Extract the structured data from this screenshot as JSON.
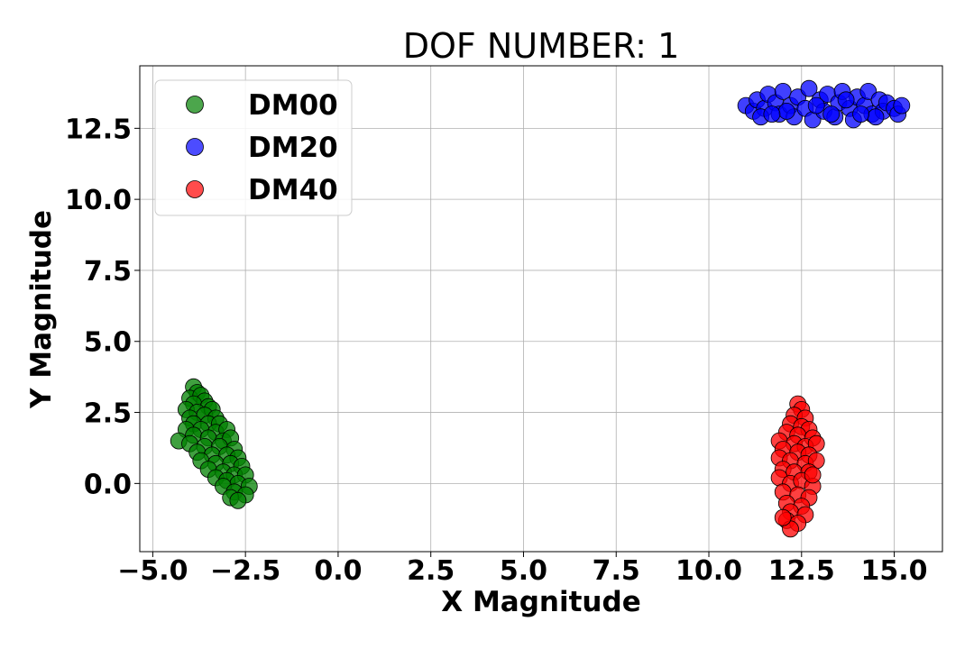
{
  "chart_data": {
    "type": "scatter",
    "title": "DOF NUMBER: 1",
    "xlabel": "X Magnitude",
    "ylabel": "Y Magnitude",
    "xlim": [
      -5.35,
      16.3
    ],
    "ylim": [
      -2.4,
      14.7
    ],
    "x_ticks": [
      -5.0,
      -2.5,
      0.0,
      2.5,
      5.0,
      7.5,
      10.0,
      12.5,
      15.0
    ],
    "x_tick_labels": [
      "−5.0",
      "−2.5",
      "0.0",
      "2.5",
      "5.0",
      "7.5",
      "10.0",
      "12.5",
      "15.0"
    ],
    "y_ticks": [
      0.0,
      2.5,
      5.0,
      7.5,
      10.0,
      12.5
    ],
    "y_tick_labels": [
      "0.0",
      "2.5",
      "5.0",
      "7.5",
      "10.0",
      "12.5"
    ],
    "grid": true,
    "legend_position": "top-left",
    "series": [
      {
        "name": "DM00",
        "color": "#008000",
        "legend_color": "#4ca64c",
        "points": [
          [
            -3.9,
            3.4
          ],
          [
            -3.8,
            3.2
          ],
          [
            -4.0,
            3.0
          ],
          [
            -3.7,
            3.1
          ],
          [
            -3.6,
            2.9
          ],
          [
            -3.9,
            2.8
          ],
          [
            -4.1,
            2.6
          ],
          [
            -3.5,
            2.7
          ],
          [
            -3.8,
            2.5
          ],
          [
            -3.4,
            2.6
          ],
          [
            -4.0,
            2.3
          ],
          [
            -3.6,
            2.4
          ],
          [
            -3.3,
            2.3
          ],
          [
            -3.9,
            2.1
          ],
          [
            -3.5,
            2.1
          ],
          [
            -3.2,
            2.1
          ],
          [
            -4.1,
            1.9
          ],
          [
            -3.7,
            1.9
          ],
          [
            -3.3,
            1.8
          ],
          [
            -3.0,
            1.9
          ],
          [
            -4.3,
            1.5
          ],
          [
            -3.9,
            1.7
          ],
          [
            -3.5,
            1.6
          ],
          [
            -3.1,
            1.5
          ],
          [
            -2.9,
            1.6
          ],
          [
            -4.0,
            1.4
          ],
          [
            -3.6,
            1.3
          ],
          [
            -3.2,
            1.3
          ],
          [
            -2.8,
            1.2
          ],
          [
            -3.8,
            1.1
          ],
          [
            -3.4,
            1.0
          ],
          [
            -3.0,
            1.0
          ],
          [
            -2.7,
            0.9
          ],
          [
            -3.7,
            0.8
          ],
          [
            -3.3,
            0.7
          ],
          [
            -2.9,
            0.7
          ],
          [
            -2.6,
            0.6
          ],
          [
            -3.5,
            0.5
          ],
          [
            -3.1,
            0.4
          ],
          [
            -2.8,
            0.3
          ],
          [
            -2.5,
            0.3
          ],
          [
            -3.3,
            0.2
          ],
          [
            -3.0,
            0.1
          ],
          [
            -2.7,
            0.0
          ],
          [
            -2.4,
            -0.1
          ],
          [
            -3.1,
            -0.1
          ],
          [
            -2.8,
            -0.3
          ],
          [
            -2.5,
            -0.4
          ],
          [
            -2.9,
            -0.5
          ],
          [
            -2.7,
            -0.6
          ]
        ]
      },
      {
        "name": "DM20",
        "color": "#0000ff",
        "legend_color": "#4c4cff",
        "points": [
          [
            11.0,
            13.3
          ],
          [
            11.2,
            13.1
          ],
          [
            11.3,
            13.5
          ],
          [
            11.5,
            13.2
          ],
          [
            11.6,
            13.7
          ],
          [
            11.8,
            13.4
          ],
          [
            11.9,
            13.0
          ],
          [
            12.0,
            13.8
          ],
          [
            12.2,
            13.3
          ],
          [
            12.3,
            12.9
          ],
          [
            12.4,
            13.6
          ],
          [
            12.6,
            13.2
          ],
          [
            12.7,
            13.9
          ],
          [
            12.8,
            12.8
          ],
          [
            13.0,
            13.5
          ],
          [
            13.1,
            13.1
          ],
          [
            13.2,
            13.7
          ],
          [
            13.4,
            12.9
          ],
          [
            13.5,
            13.4
          ],
          [
            13.6,
            13.8
          ],
          [
            13.8,
            13.2
          ],
          [
            13.9,
            12.8
          ],
          [
            14.0,
            13.6
          ],
          [
            14.2,
            13.3
          ],
          [
            14.3,
            13.8
          ],
          [
            14.4,
            13.0
          ],
          [
            14.6,
            13.5
          ],
          [
            14.7,
            13.1
          ],
          [
            14.8,
            13.4
          ],
          [
            15.0,
            13.2
          ],
          [
            15.1,
            13.0
          ],
          [
            15.2,
            13.3
          ],
          [
            11.4,
            12.9
          ],
          [
            12.1,
            13.1
          ],
          [
            12.9,
            13.3
          ],
          [
            13.7,
            13.5
          ],
          [
            14.5,
            12.9
          ],
          [
            11.7,
            13.0
          ],
          [
            13.3,
            13.0
          ],
          [
            14.1,
            13.0
          ]
        ]
      },
      {
        "name": "DM40",
        "color": "#ff0000",
        "legend_color": "#ff4c4c",
        "points": [
          [
            12.4,
            2.8
          ],
          [
            12.5,
            2.6
          ],
          [
            12.3,
            2.4
          ],
          [
            12.6,
            2.3
          ],
          [
            12.2,
            2.1
          ],
          [
            12.5,
            2.0
          ],
          [
            12.7,
            1.9
          ],
          [
            12.1,
            1.8
          ],
          [
            12.4,
            1.7
          ],
          [
            12.8,
            1.6
          ],
          [
            11.9,
            1.5
          ],
          [
            12.3,
            1.4
          ],
          [
            12.6,
            1.3
          ],
          [
            12.9,
            1.4
          ],
          [
            12.0,
            1.2
          ],
          [
            12.4,
            1.1
          ],
          [
            12.7,
            1.0
          ],
          [
            11.9,
            0.9
          ],
          [
            12.2,
            0.8
          ],
          [
            12.6,
            0.7
          ],
          [
            12.9,
            0.8
          ],
          [
            12.0,
            0.5
          ],
          [
            12.3,
            0.4
          ],
          [
            12.7,
            0.4
          ],
          [
            11.9,
            0.2
          ],
          [
            12.2,
            0.0
          ],
          [
            12.5,
            0.1
          ],
          [
            12.8,
            -0.1
          ],
          [
            12.0,
            -0.3
          ],
          [
            12.4,
            -0.4
          ],
          [
            12.7,
            -0.5
          ],
          [
            12.1,
            -0.7
          ],
          [
            12.5,
            -0.8
          ],
          [
            12.2,
            -1.0
          ],
          [
            12.6,
            -1.1
          ],
          [
            12.1,
            -1.3
          ],
          [
            12.4,
            -1.4
          ],
          [
            12.2,
            -1.6
          ],
          [
            12.0,
            -1.2
          ],
          [
            12.8,
            0.3
          ]
        ]
      }
    ]
  }
}
